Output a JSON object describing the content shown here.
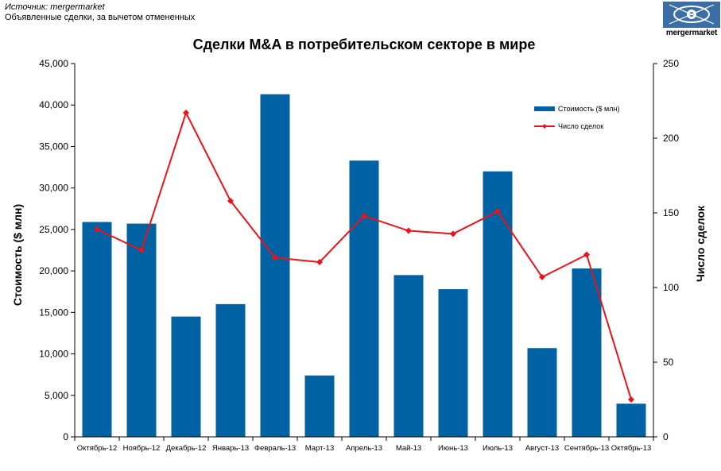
{
  "header": {
    "source": "Источник: mergermarket",
    "note": "Объявленные сделки, за вычетом отмененных",
    "logo_text": "mergermarket"
  },
  "chart_data": {
    "type": "bar",
    "title": "Сделки  M&A в потребительском секторе в мире",
    "categories": [
      "Октябрь-12",
      "Ноябрь-12",
      "Декабрь-12",
      "Январь-13",
      "Февраль-13",
      "Март-13",
      "Апрель-13",
      "Май-13",
      "Июнь-13",
      "Июль-13",
      "Август-13",
      "Сентябрь-13",
      "Октябрь-13"
    ],
    "ylabel": "Стоимость  ($ млн)",
    "y2label": "Число сделок",
    "ylim": [
      0,
      45000
    ],
    "y2lim": [
      0,
      250
    ],
    "yticks": [
      "0",
      "5,000",
      "10,000",
      "15,000",
      "20,000",
      "25,000",
      "30,000",
      "35,000",
      "40,000",
      "45,000"
    ],
    "y2ticks": [
      "0",
      "50",
      "100",
      "150",
      "200",
      "250"
    ],
    "series": [
      {
        "name": "Стоимость ($ млн)",
        "type": "bar",
        "axis": "left",
        "color": "#0062a3",
        "values": [
          25900,
          25700,
          14500,
          16000,
          41300,
          7400,
          33300,
          19500,
          17800,
          32000,
          10700,
          20300,
          4000
        ]
      },
      {
        "name": "Число сделок",
        "type": "line",
        "axis": "right",
        "color": "#e8141b",
        "values": [
          139,
          125,
          217,
          158,
          120,
          117,
          148,
          138,
          136,
          151,
          107,
          122,
          25
        ]
      }
    ],
    "legend_position": "top-right",
    "grid": false
  }
}
